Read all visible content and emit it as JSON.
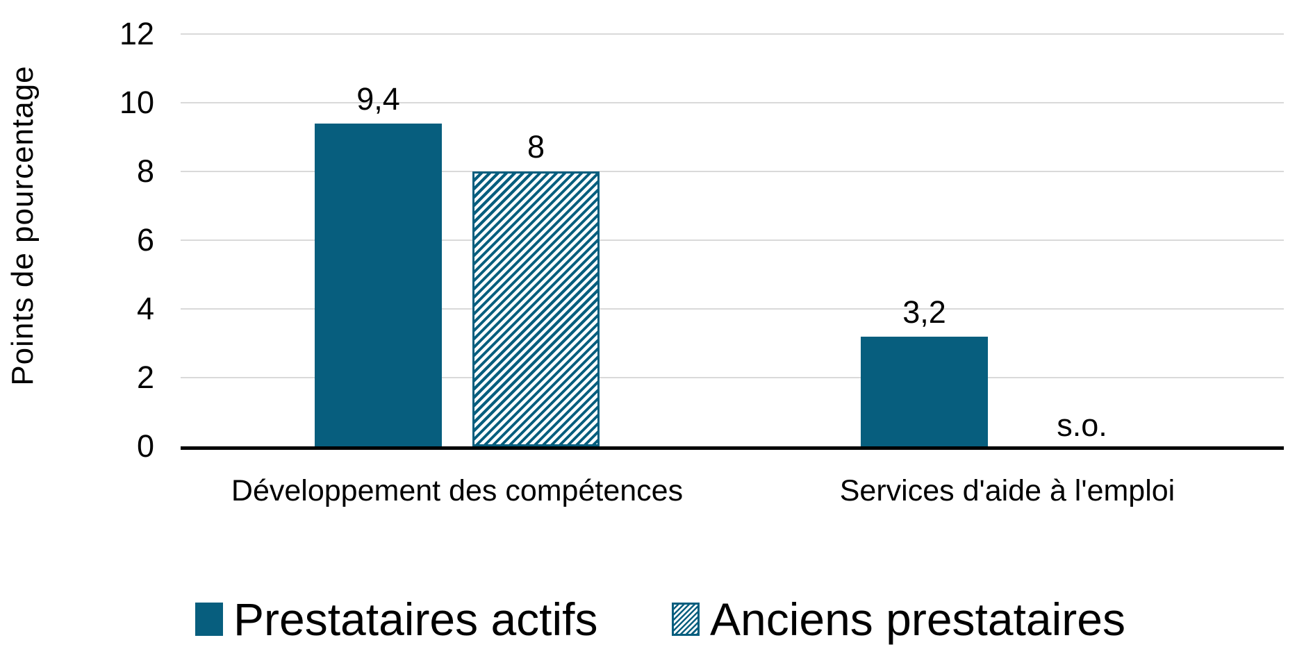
{
  "chart_data": {
    "type": "bar",
    "title": "",
    "ylabel": "Points de pourcentage",
    "xlabel": "",
    "ylim": [
      0,
      12
    ],
    "yticks": [
      0,
      2,
      4,
      6,
      8,
      10,
      12
    ],
    "grid": true,
    "legend_position": "bottom",
    "categories": [
      "Développement des compétences",
      "Services d'aide à l'emploi"
    ],
    "series": [
      {
        "name": "Prestataires actifs",
        "style": "solid",
        "values": [
          9.4,
          3.2
        ],
        "value_labels": [
          "9,4",
          "3,2"
        ]
      },
      {
        "name": "Anciens prestataires",
        "style": "hatched",
        "values": [
          8,
          null
        ],
        "value_labels": [
          "8",
          "s.o."
        ]
      }
    ],
    "not_applicable_label": "s.o.",
    "colors": {
      "series": "#075E7E",
      "gridline": "#D9D9D9",
      "axis": "#000000",
      "text": "#000000"
    }
  }
}
